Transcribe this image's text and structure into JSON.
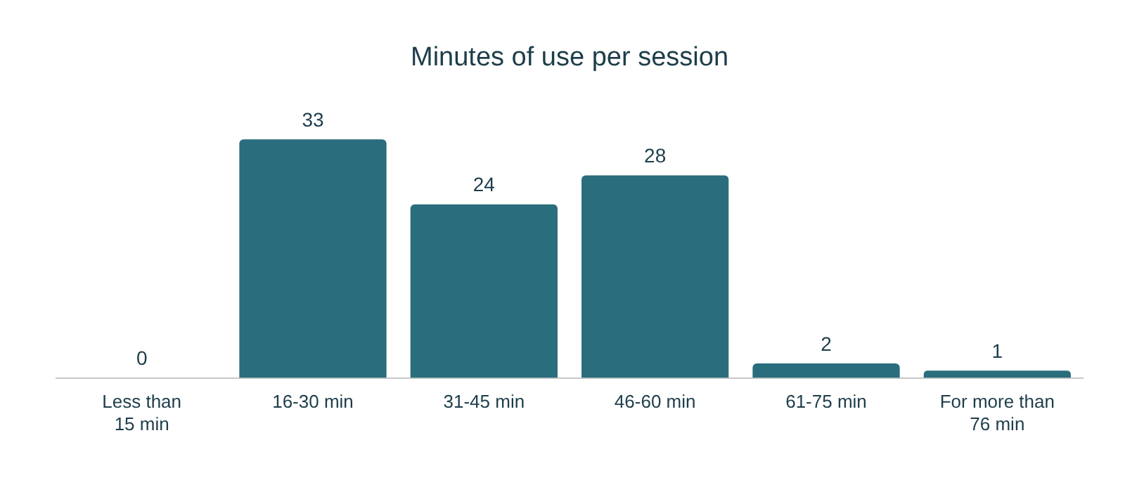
{
  "chart_data": {
    "type": "bar",
    "title": "Minutes of use per session",
    "categories": [
      "Less than\n15 min",
      "16-30 min",
      "31-45 min",
      "46-60 min",
      "61-75 min",
      "For more than\n76 min"
    ],
    "values": [
      0,
      33,
      24,
      28,
      2,
      1
    ],
    "color": "#2a6d7c",
    "data_labels": true,
    "grid": false,
    "legend": false,
    "tick_labels": "x"
  }
}
